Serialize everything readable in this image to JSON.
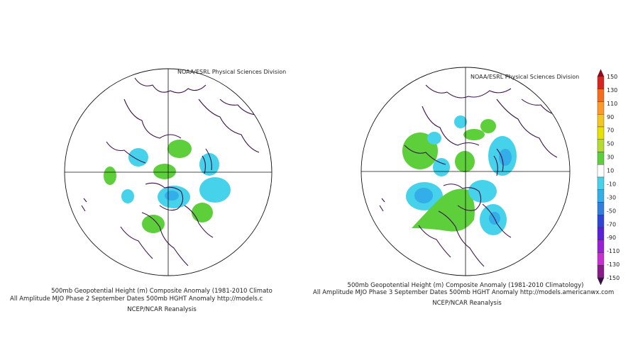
{
  "left_map": {
    "credit": "NOAA/ESRL Physical Sciences Division",
    "caption_line1": "500mb Geopotential Height (m) Composite Anomaly (1981-2010 Climato",
    "caption_line2": "All Amplitude MJO Phase 2 September Dates 500mb HGHT Anomaly http://models.c",
    "caption_line3": "NCEP/NCAR Reanalysis"
  },
  "right_map": {
    "credit": "NOAA/ESRL Physical Sciences Division",
    "caption_line1": "500mb Geopotential Height (m) Composite Anomaly (1981-2010 Climatology)",
    "caption_line2": "All Amplitude MJO Phase 3 September Dates 500mb HGHT Anomaly http://models.americanwx.com",
    "caption_line3": "NCEP/NCAR Reanalysis"
  },
  "colorbar": {
    "labels": [
      "150",
      "130",
      "110",
      "90",
      "70",
      "50",
      "30",
      "10",
      "-10",
      "-30",
      "-50",
      "-70",
      "-90",
      "-110",
      "-130",
      "-150"
    ],
    "colors": [
      "#a0001e",
      "#d7261e",
      "#f46d1a",
      "#fd9a2a",
      "#f5c522",
      "#e6e200",
      "#b5dc2d",
      "#5ccf3a",
      "#ffffff",
      "#45d2ea",
      "#33aee8",
      "#2f7ee0",
      "#2f45d8",
      "#5a1fd8",
      "#9a1fd8",
      "#c72fd0",
      "#8a1a8a",
      "#3e0a4a"
    ],
    "legend_position": "right"
  },
  "colors": {
    "positive_anomaly": "#5ccf3a",
    "negative_anomaly": "#45d2ea",
    "negative_anomaly_strong": "#33aee8",
    "coastline": "#3d0f4a"
  }
}
